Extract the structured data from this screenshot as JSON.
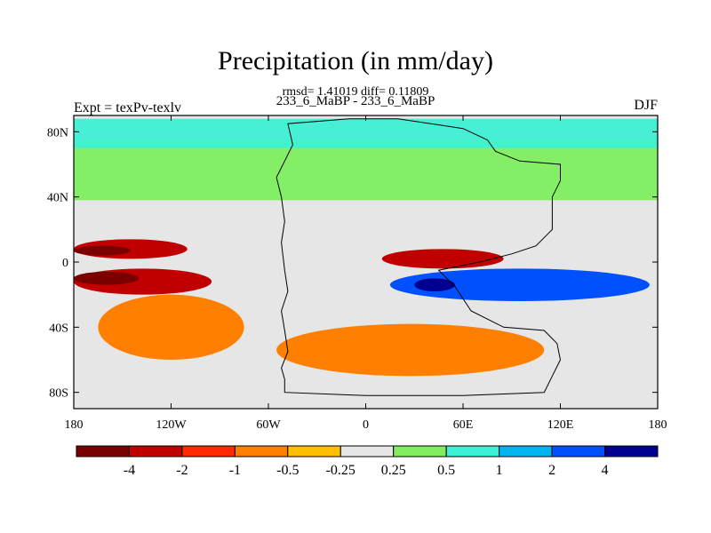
{
  "chart_data": {
    "type": "heatmap",
    "title": "Precipitation (in mm/day)",
    "stats_line": "rmsd= 1.41019 diff= 0.11809",
    "subtitle": "233_6_MaBP - 233_6_MaBP",
    "left_label": "Expt = texPv-texlv",
    "right_label": "DJF",
    "x_axis": {
      "range": [
        -180,
        180
      ],
      "ticks": [
        {
          "value": -180,
          "label": "180"
        },
        {
          "value": -120,
          "label": "120W"
        },
        {
          "value": -60,
          "label": "60W"
        },
        {
          "value": 0,
          "label": "0"
        },
        {
          "value": 60,
          "label": "60E"
        },
        {
          "value": 120,
          "label": "120E"
        },
        {
          "value": 180,
          "label": "180"
        }
      ]
    },
    "y_axis": {
      "range": [
        -90,
        90
      ],
      "ticks": [
        {
          "value": 80,
          "label": "80N"
        },
        {
          "value": 40,
          "label": "40N"
        },
        {
          "value": 0,
          "label": "0"
        },
        {
          "value": -40,
          "label": "40S"
        },
        {
          "value": -80,
          "label": "80S"
        }
      ]
    },
    "colorbar": {
      "labels": [
        "-4",
        "-2",
        "-1",
        "-0.5",
        "-0.25",
        "0.25",
        "0.5",
        "1",
        "2",
        "4"
      ],
      "colors": [
        "#7a0000",
        "#c00000",
        "#ff2a00",
        "#ff7f00",
        "#ffbf00",
        "#e6e6e6",
        "#80ee60",
        "#3ef0d4",
        "#00b4f0",
        "#0050ff",
        "#000090"
      ]
    },
    "regions": [
      {
        "name": "pacific-north-wet-band",
        "level": 1,
        "lon": [
          -180,
          -110
        ],
        "lat": [
          2,
          14
        ]
      },
      {
        "name": "pacific-north-core",
        "level": 0,
        "lon": [
          -180,
          -145
        ],
        "lat": [
          4,
          10
        ]
      },
      {
        "name": "pacific-south-dry-band",
        "level": 1,
        "lon": [
          -180,
          -95
        ],
        "lat": [
          -20,
          -4
        ]
      },
      {
        "name": "pacific-south-core",
        "level": 0,
        "lon": [
          -180,
          -140
        ],
        "lat": [
          -14,
          -6
        ]
      },
      {
        "name": "south-pacific-plume",
        "level": 3,
        "lon": [
          -165,
          -75
        ],
        "lat": [
          -60,
          -20
        ]
      },
      {
        "name": "southern-ocean-orange",
        "level": 3,
        "lon": [
          -55,
          110
        ],
        "lat": [
          -70,
          -38
        ]
      },
      {
        "name": "africa-indian-red",
        "level": 1,
        "lon": [
          10,
          85
        ],
        "lat": [
          -4,
          8
        ]
      },
      {
        "name": "indian-ocean-blue",
        "level": 9,
        "lon": [
          15,
          175
        ],
        "lat": [
          -24,
          -4
        ]
      },
      {
        "name": "indian-ocean-core",
        "level": 10,
        "lon": [
          30,
          55
        ],
        "lat": [
          -18,
          -10
        ]
      },
      {
        "name": "northern-green",
        "level": 6,
        "lon": [
          -180,
          180
        ],
        "lat": [
          38,
          75
        ]
      },
      {
        "name": "arctic-cyan",
        "level": 7,
        "lon": [
          -180,
          180
        ],
        "lat": [
          70,
          88
        ]
      }
    ]
  }
}
